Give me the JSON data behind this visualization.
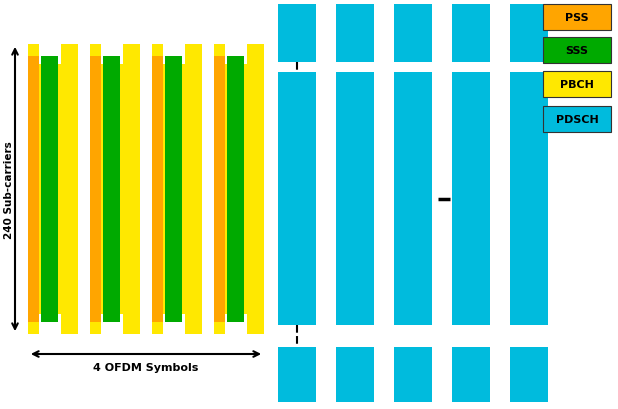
{
  "colors": {
    "yellow": "#FFE800",
    "orange": "#FFA500",
    "green": "#00AA00",
    "cyan": "#00BBDD",
    "white": "#FFFFFF",
    "black": "#000000"
  },
  "legend": [
    {
      "label": "PSS",
      "color": "#FFA500"
    },
    {
      "label": "SSS",
      "color": "#00AA00"
    },
    {
      "label": "PBCH",
      "color": "#FFE800"
    },
    {
      "label": "PDSCH",
      "color": "#00BBDD"
    }
  ],
  "figsize": [
    6.18,
    4.1
  ],
  "dpi": 100
}
